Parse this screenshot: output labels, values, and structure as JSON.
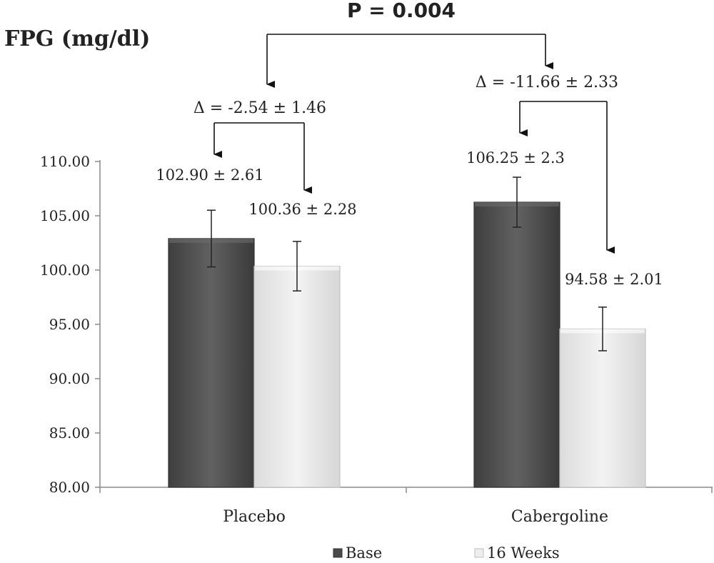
{
  "chart_data": {
    "type": "bar",
    "ylabel": "FPG (mg/dl)",
    "xlabel": "",
    "ylim": [
      80,
      110
    ],
    "yticks": [
      "110.00",
      "105.00",
      "100.00",
      "95.00",
      "90.00",
      "85.00",
      "80.00"
    ],
    "categories": [
      "Placebo",
      "Cabergoline"
    ],
    "series": [
      {
        "name": "Base",
        "values": [
          102.9,
          106.25
        ],
        "errors": [
          2.61,
          2.3
        ],
        "labels": [
          "102.90 ± 2.61",
          "106.25 ± 2.3"
        ],
        "color": "#555555"
      },
      {
        "name": "16 Weeks",
        "values": [
          100.36,
          94.58
        ],
        "errors": [
          2.28,
          2.01
        ],
        "labels": [
          "100.36 ± 2.28",
          "94.58 ± 2.01"
        ],
        "color": "#ececec"
      }
    ],
    "annotations": {
      "p_value": "P = 0.004",
      "deltas": [
        "Δ = -2.54 ± 1.46",
        "Δ = -11.66 ± 2.33"
      ]
    },
    "legend_position": "bottom",
    "grid": false
  }
}
